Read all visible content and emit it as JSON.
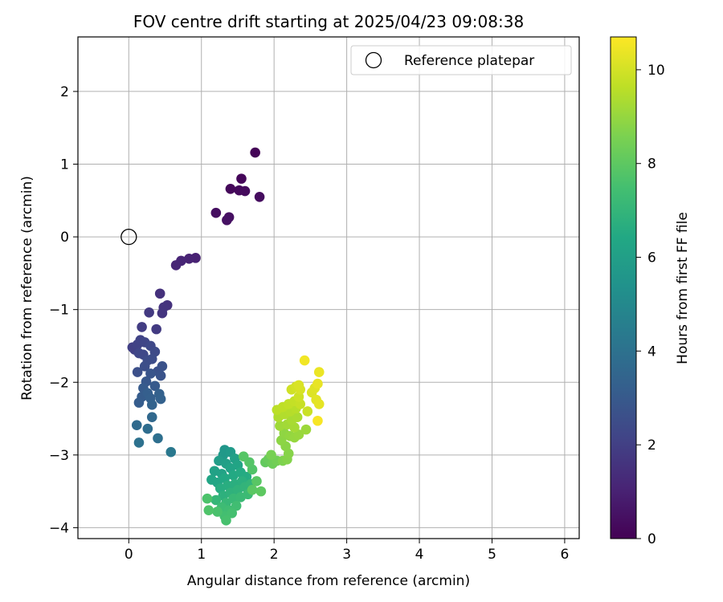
{
  "chart_data": {
    "type": "scatter",
    "title": "FOV centre drift starting at 2025/04/23 09:08:38",
    "xlabel": "Angular distance from reference (arcmin)",
    "ylabel": "Rotation from reference (arcmin)",
    "xlim": [
      -0.7,
      6.2
    ],
    "ylim": [
      -4.15,
      2.75
    ],
    "xticks": [
      0,
      1,
      2,
      3,
      4,
      5,
      6
    ],
    "yticks": [
      -4,
      -3,
      -2,
      -1,
      0,
      1,
      2
    ],
    "xtick_labels": [
      "0",
      "1",
      "2",
      "3",
      "4",
      "5",
      "6"
    ],
    "ytick_labels": [
      "−4",
      "−3",
      "−2",
      "−1",
      "0",
      "1",
      "2"
    ],
    "grid": true,
    "legend": {
      "placement": "top-right",
      "entries": [
        "Reference platepar"
      ]
    },
    "reference_point": {
      "x": 0,
      "y": 0,
      "label": "Reference platepar",
      "marker": "open-circle"
    },
    "colorbar": {
      "label": "Hours from first FF file",
      "range": [
        0,
        10.7
      ],
      "ticks": [
        0,
        2,
        4,
        6,
        8,
        10
      ],
      "tick_labels": [
        "0",
        "2",
        "4",
        "6",
        "8",
        "10"
      ],
      "colormap": "viridis"
    },
    "points": [
      {
        "x": 1.74,
        "y": 1.16,
        "t": 0.1
      },
      {
        "x": 1.55,
        "y": 0.8,
        "t": 0.15
      },
      {
        "x": 1.4,
        "y": 0.66,
        "t": 0.2
      },
      {
        "x": 1.52,
        "y": 0.64,
        "t": 0.25
      },
      {
        "x": 1.6,
        "y": 0.63,
        "t": 0.3
      },
      {
        "x": 1.8,
        "y": 0.55,
        "t": 0.35
      },
      {
        "x": 1.2,
        "y": 0.33,
        "t": 0.4
      },
      {
        "x": 1.38,
        "y": 0.27,
        "t": 0.45
      },
      {
        "x": 1.35,
        "y": 0.23,
        "t": 0.5
      },
      {
        "x": 0.92,
        "y": -0.29,
        "t": 1.0
      },
      {
        "x": 0.83,
        "y": -0.3,
        "t": 1.05
      },
      {
        "x": 0.72,
        "y": -0.33,
        "t": 1.1
      },
      {
        "x": 0.65,
        "y": -0.39,
        "t": 1.15
      },
      {
        "x": 0.43,
        "y": -0.78,
        "t": 1.5
      },
      {
        "x": 0.53,
        "y": -0.94,
        "t": 1.55
      },
      {
        "x": 0.48,
        "y": -0.97,
        "t": 1.6
      },
      {
        "x": 0.46,
        "y": -1.05,
        "t": 1.65
      },
      {
        "x": 0.28,
        "y": -1.04,
        "t": 1.8
      },
      {
        "x": 0.38,
        "y": -1.27,
        "t": 1.85
      },
      {
        "x": 0.18,
        "y": -1.24,
        "t": 1.9
      },
      {
        "x": 0.05,
        "y": -1.52,
        "t": 2.0
      },
      {
        "x": 0.08,
        "y": -1.55,
        "t": 2.05
      },
      {
        "x": 0.12,
        "y": -1.48,
        "t": 2.1
      },
      {
        "x": 0.16,
        "y": -1.42,
        "t": 2.15
      },
      {
        "x": 0.22,
        "y": -1.45,
        "t": 2.2
      },
      {
        "x": 0.14,
        "y": -1.6,
        "t": 2.25
      },
      {
        "x": 0.2,
        "y": -1.62,
        "t": 2.3
      },
      {
        "x": 0.3,
        "y": -1.5,
        "t": 2.35
      },
      {
        "x": 0.36,
        "y": -1.58,
        "t": 2.4
      },
      {
        "x": 0.26,
        "y": -1.7,
        "t": 2.45
      },
      {
        "x": 0.32,
        "y": -1.68,
        "t": 2.5
      },
      {
        "x": 0.22,
        "y": -1.78,
        "t": 2.55
      },
      {
        "x": 0.12,
        "y": -1.86,
        "t": 2.6
      },
      {
        "x": 0.4,
        "y": -1.85,
        "t": 2.65
      },
      {
        "x": 0.46,
        "y": -1.78,
        "t": 2.7
      },
      {
        "x": 0.44,
        "y": -1.91,
        "t": 2.75
      },
      {
        "x": 0.3,
        "y": -1.88,
        "t": 2.8
      },
      {
        "x": 0.24,
        "y": -1.99,
        "t": 2.9
      },
      {
        "x": 0.36,
        "y": -2.05,
        "t": 3.0
      },
      {
        "x": 0.2,
        "y": -2.08,
        "t": 3.05
      },
      {
        "x": 0.18,
        "y": -2.2,
        "t": 3.1
      },
      {
        "x": 0.14,
        "y": -2.28,
        "t": 3.15
      },
      {
        "x": 0.26,
        "y": -2.15,
        "t": 3.2
      },
      {
        "x": 0.3,
        "y": -2.22,
        "t": 3.25
      },
      {
        "x": 0.42,
        "y": -2.16,
        "t": 3.3
      },
      {
        "x": 0.44,
        "y": -2.23,
        "t": 3.35
      },
      {
        "x": 0.32,
        "y": -2.31,
        "t": 3.4
      },
      {
        "x": 0.32,
        "y": -2.48,
        "t": 3.6
      },
      {
        "x": 0.11,
        "y": -2.59,
        "t": 3.7
      },
      {
        "x": 0.26,
        "y": -2.64,
        "t": 3.8
      },
      {
        "x": 0.4,
        "y": -2.77,
        "t": 3.9
      },
      {
        "x": 0.14,
        "y": -2.83,
        "t": 4.0
      },
      {
        "x": 0.58,
        "y": -2.96,
        "t": 4.3
      },
      {
        "x": 1.32,
        "y": -2.93,
        "t": 5.6
      },
      {
        "x": 1.3,
        "y": -3.0,
        "t": 5.7
      },
      {
        "x": 1.4,
        "y": -2.96,
        "t": 5.8
      },
      {
        "x": 1.24,
        "y": -3.08,
        "t": 5.9
      },
      {
        "x": 1.34,
        "y": -3.12,
        "t": 6.0
      },
      {
        "x": 1.46,
        "y": -3.05,
        "t": 6.05
      },
      {
        "x": 1.18,
        "y": -3.22,
        "t": 6.1
      },
      {
        "x": 1.28,
        "y": -3.26,
        "t": 6.15
      },
      {
        "x": 1.4,
        "y": -3.18,
        "t": 6.2
      },
      {
        "x": 1.5,
        "y": -3.14,
        "t": 6.25
      },
      {
        "x": 1.14,
        "y": -3.34,
        "t": 6.3
      },
      {
        "x": 1.22,
        "y": -3.38,
        "t": 6.35
      },
      {
        "x": 1.32,
        "y": -3.32,
        "t": 6.4
      },
      {
        "x": 1.44,
        "y": -3.28,
        "t": 6.45
      },
      {
        "x": 1.54,
        "y": -3.24,
        "t": 6.5
      },
      {
        "x": 1.62,
        "y": -3.3,
        "t": 6.55
      },
      {
        "x": 1.26,
        "y": -3.46,
        "t": 6.6
      },
      {
        "x": 1.36,
        "y": -3.42,
        "t": 6.65
      },
      {
        "x": 1.46,
        "y": -3.4,
        "t": 6.7
      },
      {
        "x": 1.56,
        "y": -3.36,
        "t": 6.75
      },
      {
        "x": 1.3,
        "y": -3.56,
        "t": 6.8
      },
      {
        "x": 1.4,
        "y": -3.52,
        "t": 6.85
      },
      {
        "x": 1.5,
        "y": -3.48,
        "t": 6.9
      },
      {
        "x": 1.6,
        "y": -3.44,
        "t": 6.95
      },
      {
        "x": 1.68,
        "y": -3.4,
        "t": 7.0
      },
      {
        "x": 1.2,
        "y": -3.62,
        "t": 7.05
      },
      {
        "x": 1.34,
        "y": -3.66,
        "t": 7.1
      },
      {
        "x": 1.44,
        "y": -3.6,
        "t": 7.15
      },
      {
        "x": 1.54,
        "y": -3.58,
        "t": 7.2
      },
      {
        "x": 1.64,
        "y": -3.54,
        "t": 7.25
      },
      {
        "x": 1.28,
        "y": -3.72,
        "t": 7.3
      },
      {
        "x": 1.38,
        "y": -3.76,
        "t": 7.35
      },
      {
        "x": 1.48,
        "y": -3.7,
        "t": 7.4
      },
      {
        "x": 1.32,
        "y": -3.84,
        "t": 7.45
      },
      {
        "x": 1.42,
        "y": -3.8,
        "t": 7.5
      },
      {
        "x": 1.34,
        "y": -3.9,
        "t": 7.55
      },
      {
        "x": 1.22,
        "y": -3.78,
        "t": 7.6
      },
      {
        "x": 1.08,
        "y": -3.6,
        "t": 7.65
      },
      {
        "x": 1.1,
        "y": -3.76,
        "t": 7.7
      },
      {
        "x": 1.7,
        "y": -3.2,
        "t": 7.75
      },
      {
        "x": 1.66,
        "y": -3.1,
        "t": 7.8
      },
      {
        "x": 1.58,
        "y": -3.02,
        "t": 7.85
      },
      {
        "x": 1.76,
        "y": -3.36,
        "t": 7.9
      },
      {
        "x": 1.7,
        "y": -3.48,
        "t": 7.95
      },
      {
        "x": 1.82,
        "y": -3.5,
        "t": 8.0
      },
      {
        "x": 1.88,
        "y": -3.1,
        "t": 8.1
      },
      {
        "x": 1.92,
        "y": -3.06,
        "t": 8.2
      },
      {
        "x": 1.98,
        "y": -3.12,
        "t": 8.3
      },
      {
        "x": 2.04,
        "y": -3.08,
        "t": 8.4
      },
      {
        "x": 1.96,
        "y": -3.0,
        "t": 8.5
      },
      {
        "x": 2.12,
        "y": -3.08,
        "t": 8.6
      },
      {
        "x": 2.18,
        "y": -3.06,
        "t": 8.7
      },
      {
        "x": 2.2,
        "y": -2.98,
        "t": 8.75
      },
      {
        "x": 2.16,
        "y": -2.88,
        "t": 8.8
      },
      {
        "x": 2.1,
        "y": -2.8,
        "t": 8.85
      },
      {
        "x": 2.14,
        "y": -2.7,
        "t": 8.9
      },
      {
        "x": 2.22,
        "y": -2.74,
        "t": 8.95
      },
      {
        "x": 2.28,
        "y": -2.76,
        "t": 9.0
      },
      {
        "x": 2.34,
        "y": -2.72,
        "t": 9.05
      },
      {
        "x": 2.44,
        "y": -2.65,
        "t": 9.1
      },
      {
        "x": 2.08,
        "y": -2.6,
        "t": 9.15
      },
      {
        "x": 2.18,
        "y": -2.58,
        "t": 9.2
      },
      {
        "x": 2.28,
        "y": -2.62,
        "t": 9.25
      },
      {
        "x": 2.24,
        "y": -2.52,
        "t": 9.3
      },
      {
        "x": 2.32,
        "y": -2.48,
        "t": 9.35
      },
      {
        "x": 2.06,
        "y": -2.48,
        "t": 9.4
      },
      {
        "x": 2.14,
        "y": -2.44,
        "t": 9.45
      },
      {
        "x": 2.22,
        "y": -2.4,
        "t": 9.5
      },
      {
        "x": 2.3,
        "y": -2.36,
        "t": 9.55
      },
      {
        "x": 2.04,
        "y": -2.38,
        "t": 9.6
      },
      {
        "x": 2.12,
        "y": -2.34,
        "t": 9.65
      },
      {
        "x": 2.2,
        "y": -2.3,
        "t": 9.7
      },
      {
        "x": 2.28,
        "y": -2.26,
        "t": 9.75
      },
      {
        "x": 2.36,
        "y": -2.3,
        "t": 9.8
      },
      {
        "x": 2.46,
        "y": -2.4,
        "t": 9.85
      },
      {
        "x": 2.34,
        "y": -2.2,
        "t": 9.9
      },
      {
        "x": 2.24,
        "y": -2.1,
        "t": 9.95
      },
      {
        "x": 2.3,
        "y": -2.06,
        "t": 10.0
      },
      {
        "x": 2.36,
        "y": -2.1,
        "t": 10.05
      },
      {
        "x": 2.34,
        "y": -2.04,
        "t": 10.1
      },
      {
        "x": 2.52,
        "y": -2.14,
        "t": 10.15
      },
      {
        "x": 2.56,
        "y": -2.08,
        "t": 10.2
      },
      {
        "x": 2.58,
        "y": -2.24,
        "t": 10.25
      },
      {
        "x": 2.62,
        "y": -2.3,
        "t": 10.3
      },
      {
        "x": 2.6,
        "y": -2.02,
        "t": 10.35
      },
      {
        "x": 2.62,
        "y": -1.86,
        "t": 10.4
      },
      {
        "x": 2.42,
        "y": -1.7,
        "t": 10.5
      },
      {
        "x": 2.6,
        "y": -2.53,
        "t": 10.6
      }
    ]
  }
}
